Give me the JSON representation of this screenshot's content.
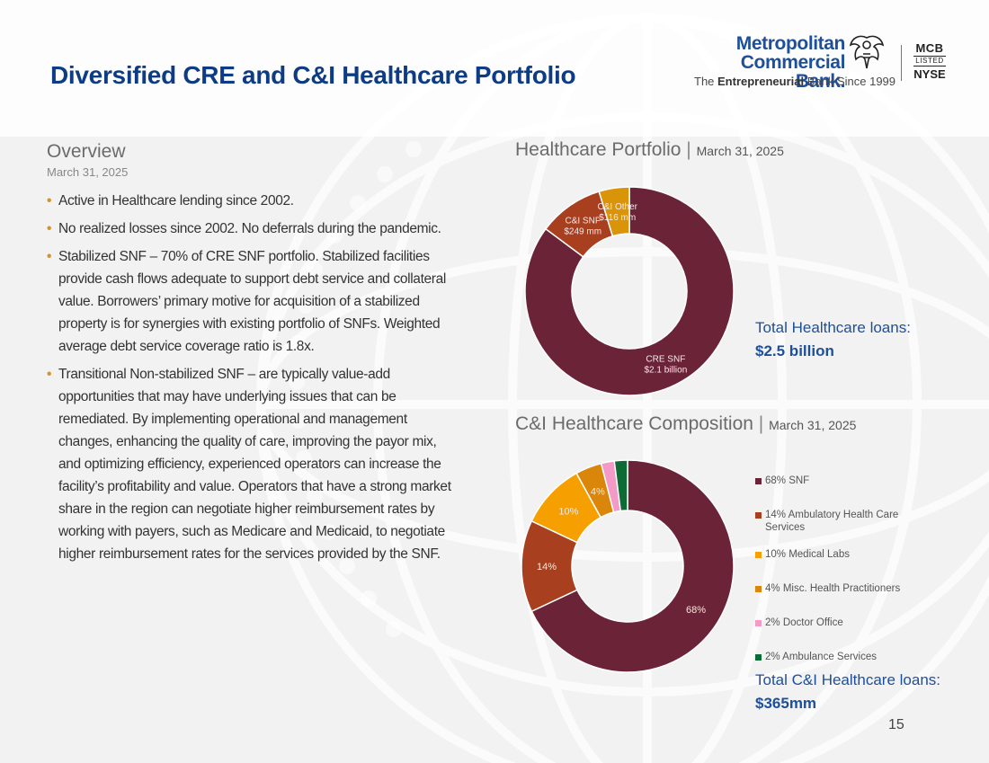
{
  "header": {
    "title": "Diversified CRE and C&I Healthcare Portfolio",
    "bank_line1": "Metropolitan",
    "bank_line2": "Commercial Bank.",
    "tagline_pre": "The ",
    "tagline_bold": "Entrepreneurial",
    "tagline_post": " Bank Since 1999",
    "ticker_top": "MCB",
    "ticker_mid": "LISTED",
    "ticker_bottom": "NYSE"
  },
  "overview": {
    "heading": "Overview",
    "date": "March 31, 2025",
    "bullets": [
      "Active in Healthcare lending since 2002.",
      "No realized losses since 2002. No deferrals during the pandemic.",
      "Stabilized SNF – 70% of CRE SNF portfolio. Stabilized facilities provide cash flows adequate to support debt service and collateral value. Borrowers’ primary motive for acquisition of a stabilized property is for synergies with existing portfolio of SNFs. Weighted average debt service coverage ratio is 1.8x.",
      "Transitional Non-stabilized SNF – are typically value-add opportunities that may have underlying issues that can be remediated. By implementing operational and management changes, enhancing the quality of care, improving the payor mix, and optimizing efficiency, experienced operators can increase the facility’s profitability and value. Operators that have a strong market share in the region can negotiate higher reimbursement rates by working with payers, such as Medicare and Medicaid, to negotiate higher reimbursement rates for the services provided by the SNF."
    ]
  },
  "healthcare_section": {
    "title": "Healthcare Portfolio",
    "sep": "|",
    "date": "March 31, 2025",
    "total_label": "Total Healthcare loans:",
    "total_value": "$2.5 billion"
  },
  "ci_section": {
    "title": "C&I Healthcare Composition",
    "sep": "|",
    "date": "March 31, 2025",
    "total_label": "Total C&I Healthcare loans:",
    "total_value": "$365mm"
  },
  "page_number": "15",
  "chart_data": [
    {
      "type": "pie",
      "variant": "donut",
      "title": "Healthcare Portfolio",
      "slices": [
        {
          "name": "CRE SNF",
          "value": 2100,
          "label1": "CRE SNF",
          "label2": "$2.1 billion",
          "color": "#6b2337"
        },
        {
          "name": "C&I SNF",
          "value": 249,
          "label1": "C&I SNF",
          "label2": "$249 mm",
          "color": "#a8401f"
        },
        {
          "name": "C&I Other",
          "value": 116,
          "label1": "C&I Other",
          "label2": "$116 mm",
          "color": "#d9940a"
        }
      ],
      "units": "$ millions"
    },
    {
      "type": "pie",
      "variant": "donut",
      "title": "C&I Healthcare Composition",
      "legend_position": "right",
      "slices": [
        {
          "name": "SNF",
          "value": 68,
          "label": "68%",
          "legend": "68% SNF",
          "color": "#6b2337"
        },
        {
          "name": "Ambulatory Health Care Services",
          "value": 14,
          "label": "14%",
          "legend": "14% Ambulatory Health Care Services",
          "color": "#a8401f"
        },
        {
          "name": "Medical Labs",
          "value": 10,
          "label": "10%",
          "legend": "10% Medical Labs",
          "color": "#f5a000"
        },
        {
          "name": "Misc. Health Practitioners",
          "value": 4,
          "label": "4%",
          "legend": "4% Misc. Health Practitioners",
          "color": "#d9860a"
        },
        {
          "name": "Doctor Office",
          "value": 2,
          "label": "",
          "legend": "2% Doctor Office",
          "color": "#f39ac7"
        },
        {
          "name": "Ambulance Services",
          "value": 2,
          "label": "",
          "legend": "2% Ambulance Services",
          "color": "#0f6b35"
        }
      ],
      "units": "%"
    }
  ]
}
